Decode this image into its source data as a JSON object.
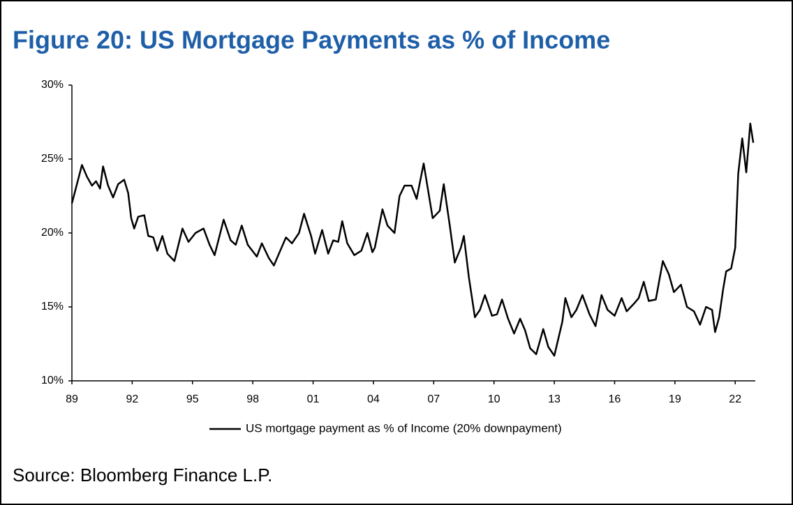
{
  "chart_data": {
    "type": "line",
    "title": "Figure 20: US Mortgage Payments as % of Income",
    "source": "Source: Bloomberg Finance L.P.",
    "xlim": [
      1989,
      2023
    ],
    "ylim": [
      10,
      30
    ],
    "xticks": [
      {
        "value": 1989,
        "label": "89"
      },
      {
        "value": 1992,
        "label": "92"
      },
      {
        "value": 1995,
        "label": "95"
      },
      {
        "value": 1998,
        "label": "98"
      },
      {
        "value": 2001,
        "label": "01"
      },
      {
        "value": 2004,
        "label": "04"
      },
      {
        "value": 2007,
        "label": "07"
      },
      {
        "value": 2010,
        "label": "10"
      },
      {
        "value": 2013,
        "label": "13"
      },
      {
        "value": 2016,
        "label": "16"
      },
      {
        "value": 2019,
        "label": "19"
      },
      {
        "value": 2022,
        "label": "22"
      }
    ],
    "yticks": [
      {
        "value": 10,
        "label": "10%"
      },
      {
        "value": 15,
        "label": "15%"
      },
      {
        "value": 20,
        "label": "20%"
      },
      {
        "value": 25,
        "label": "25%"
      },
      {
        "value": 30,
        "label": "30%"
      }
    ],
    "legend": "bottom",
    "x": [
      1989.0,
      1989.25,
      1989.5,
      1989.75,
      1990.0,
      1990.2,
      1990.4,
      1990.55,
      1990.8,
      1991.05,
      1991.3,
      1991.6,
      1991.8,
      1991.95,
      1992.1,
      1992.3,
      1992.6,
      1992.8,
      1993.05,
      1993.25,
      1993.5,
      1993.75,
      1994.1,
      1994.5,
      1994.8,
      1995.15,
      1995.55,
      1995.85,
      1996.1,
      1996.55,
      1996.9,
      1997.15,
      1997.45,
      1997.75,
      1998.2,
      1998.45,
      1998.8,
      1999.05,
      1999.3,
      1999.65,
      1999.95,
      2000.3,
      2000.55,
      2000.9,
      2001.1,
      2001.45,
      2001.75,
      2002.0,
      2002.25,
      2002.45,
      2002.7,
      2003.05,
      2003.4,
      2003.7,
      2003.95,
      2004.07,
      2004.45,
      2004.7,
      2005.05,
      2005.3,
      2005.55,
      2005.9,
      2006.15,
      2006.5,
      2006.95,
      2007.3,
      2007.5,
      2007.8,
      2008.05,
      2008.35,
      2008.5,
      2008.75,
      2009.05,
      2009.3,
      2009.55,
      2009.9,
      2010.15,
      2010.4,
      2010.7,
      2011.0,
      2011.3,
      2011.55,
      2011.8,
      2012.1,
      2012.45,
      2012.7,
      2013.0,
      2013.4,
      2013.55,
      2013.85,
      2014.1,
      2014.4,
      2014.75,
      2015.05,
      2015.35,
      2015.65,
      2016.0,
      2016.35,
      2016.6,
      2016.95,
      2017.2,
      2017.45,
      2017.7,
      2018.05,
      2018.4,
      2018.7,
      2018.95,
      2019.3,
      2019.6,
      2019.95,
      2020.25,
      2020.55,
      2020.85,
      2021.0,
      2021.2,
      2021.4,
      2021.55,
      2021.8,
      2022.0,
      2022.15,
      2022.35,
      2022.55,
      2022.75,
      2022.9
    ],
    "series": [
      {
        "name": "US mortgage payment as % of Income (20% downpayment)",
        "color": "#000000",
        "values": [
          22.0,
          23.3,
          24.6,
          23.8,
          23.2,
          23.5,
          23.0,
          24.5,
          23.2,
          22.4,
          23.3,
          23.6,
          22.7,
          21.0,
          20.3,
          21.1,
          21.2,
          19.8,
          19.7,
          18.8,
          19.8,
          18.6,
          18.1,
          20.3,
          19.4,
          20.0,
          20.3,
          19.2,
          18.5,
          20.9,
          19.5,
          19.2,
          20.5,
          19.2,
          18.4,
          19.3,
          18.3,
          17.8,
          18.6,
          19.7,
          19.3,
          20.0,
          21.3,
          19.8,
          18.6,
          20.2,
          18.6,
          19.5,
          19.4,
          20.8,
          19.3,
          18.5,
          18.8,
          20.0,
          18.7,
          19.0,
          21.6,
          20.5,
          20.0,
          22.5,
          23.2,
          23.2,
          22.3,
          24.7,
          21.0,
          21.5,
          23.3,
          20.5,
          18.0,
          19.0,
          19.8,
          17.0,
          14.3,
          14.8,
          15.8,
          14.4,
          14.5,
          15.5,
          14.2,
          13.2,
          14.2,
          13.4,
          12.2,
          11.8,
          13.5,
          12.3,
          11.7,
          14.0,
          15.6,
          14.3,
          14.8,
          15.8,
          14.5,
          13.7,
          15.8,
          14.8,
          14.4,
          15.6,
          14.7,
          15.2,
          15.6,
          16.7,
          15.4,
          15.5,
          18.1,
          17.2,
          16.0,
          16.5,
          15.0,
          14.7,
          13.8,
          15.0,
          14.8,
          13.3,
          14.3,
          16.2,
          17.4,
          17.6,
          19.0,
          24.0,
          26.4,
          24.1,
          27.4,
          26.1
        ]
      }
    ]
  }
}
